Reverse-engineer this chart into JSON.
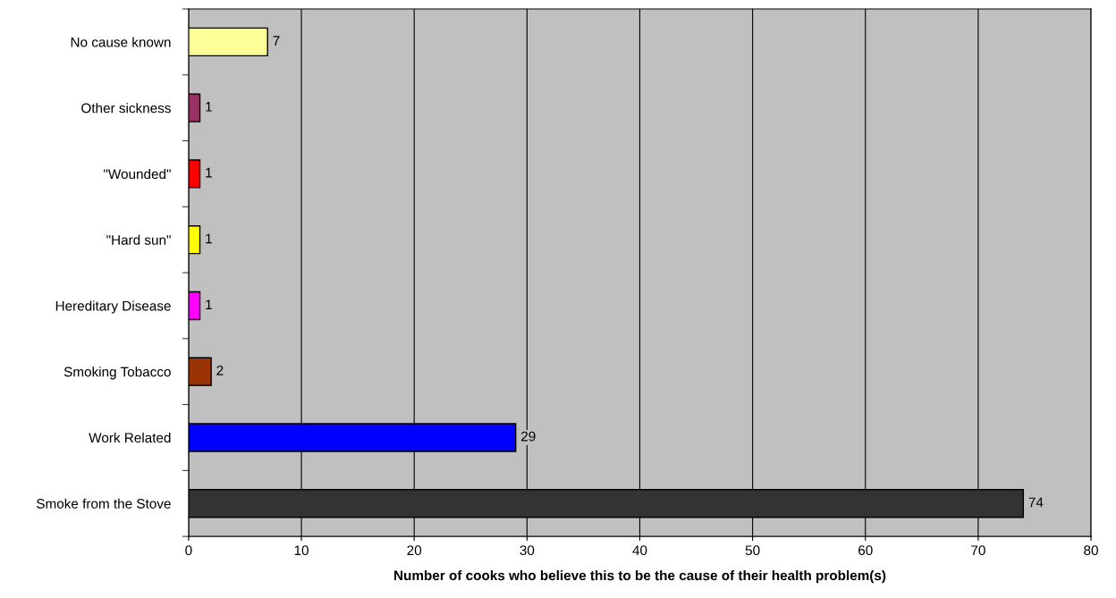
{
  "chart_data": {
    "type": "bar",
    "orientation": "horizontal",
    "xlabel": "Number of cooks who believe this to be the cause of their health problem(s)",
    "categories": [
      "No cause known",
      "Other sickness",
      "\"Wounded\"",
      "\"Hard sun\"",
      "Hereditary Disease",
      "Smoking Tobacco",
      "Work Related",
      "Smoke from the Stove"
    ],
    "values": [
      7,
      1,
      1,
      1,
      1,
      2,
      29,
      74
    ],
    "colors": [
      "#ffff99",
      "#993366",
      "#ff0000",
      "#ffff00",
      "#ff00ff",
      "#993300",
      "#0000ff",
      "#333333"
    ],
    "xlim": [
      0,
      80
    ],
    "xticks": [
      0,
      10,
      20,
      30,
      40,
      50,
      60,
      70,
      80
    ],
    "grid": "x",
    "data_labels": true,
    "legend": false
  }
}
